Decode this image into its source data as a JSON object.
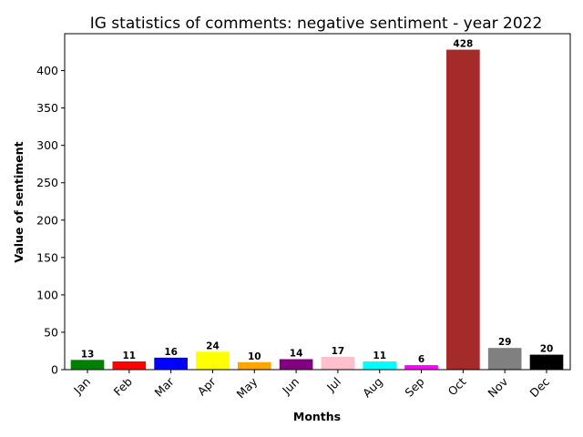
{
  "chart_data": {
    "type": "bar",
    "title": "IG statistics of comments: negative sentiment - year 2022",
    "xlabel": "Months",
    "ylabel": "Value of sentiment",
    "categories": [
      "Jan",
      "Feb",
      "Mar",
      "Apr",
      "May",
      "Jun",
      "Jul",
      "Aug",
      "Sep",
      "Oct",
      "Nov",
      "Dec"
    ],
    "values": [
      13,
      11,
      16,
      24,
      10,
      14,
      17,
      11,
      6,
      428,
      29,
      20
    ],
    "colors": [
      "#008000",
      "#ff0000",
      "#0000ff",
      "#ffff00",
      "#ffa500",
      "#800080",
      "#ffc0cb",
      "#00ffff",
      "#ff00ff",
      "#a52a2a",
      "#808080",
      "#000000"
    ],
    "yticks": [
      0,
      50,
      100,
      150,
      200,
      250,
      300,
      350,
      400
    ],
    "ylim": [
      0,
      449.4
    ],
    "grid": false,
    "legend": "none"
  }
}
